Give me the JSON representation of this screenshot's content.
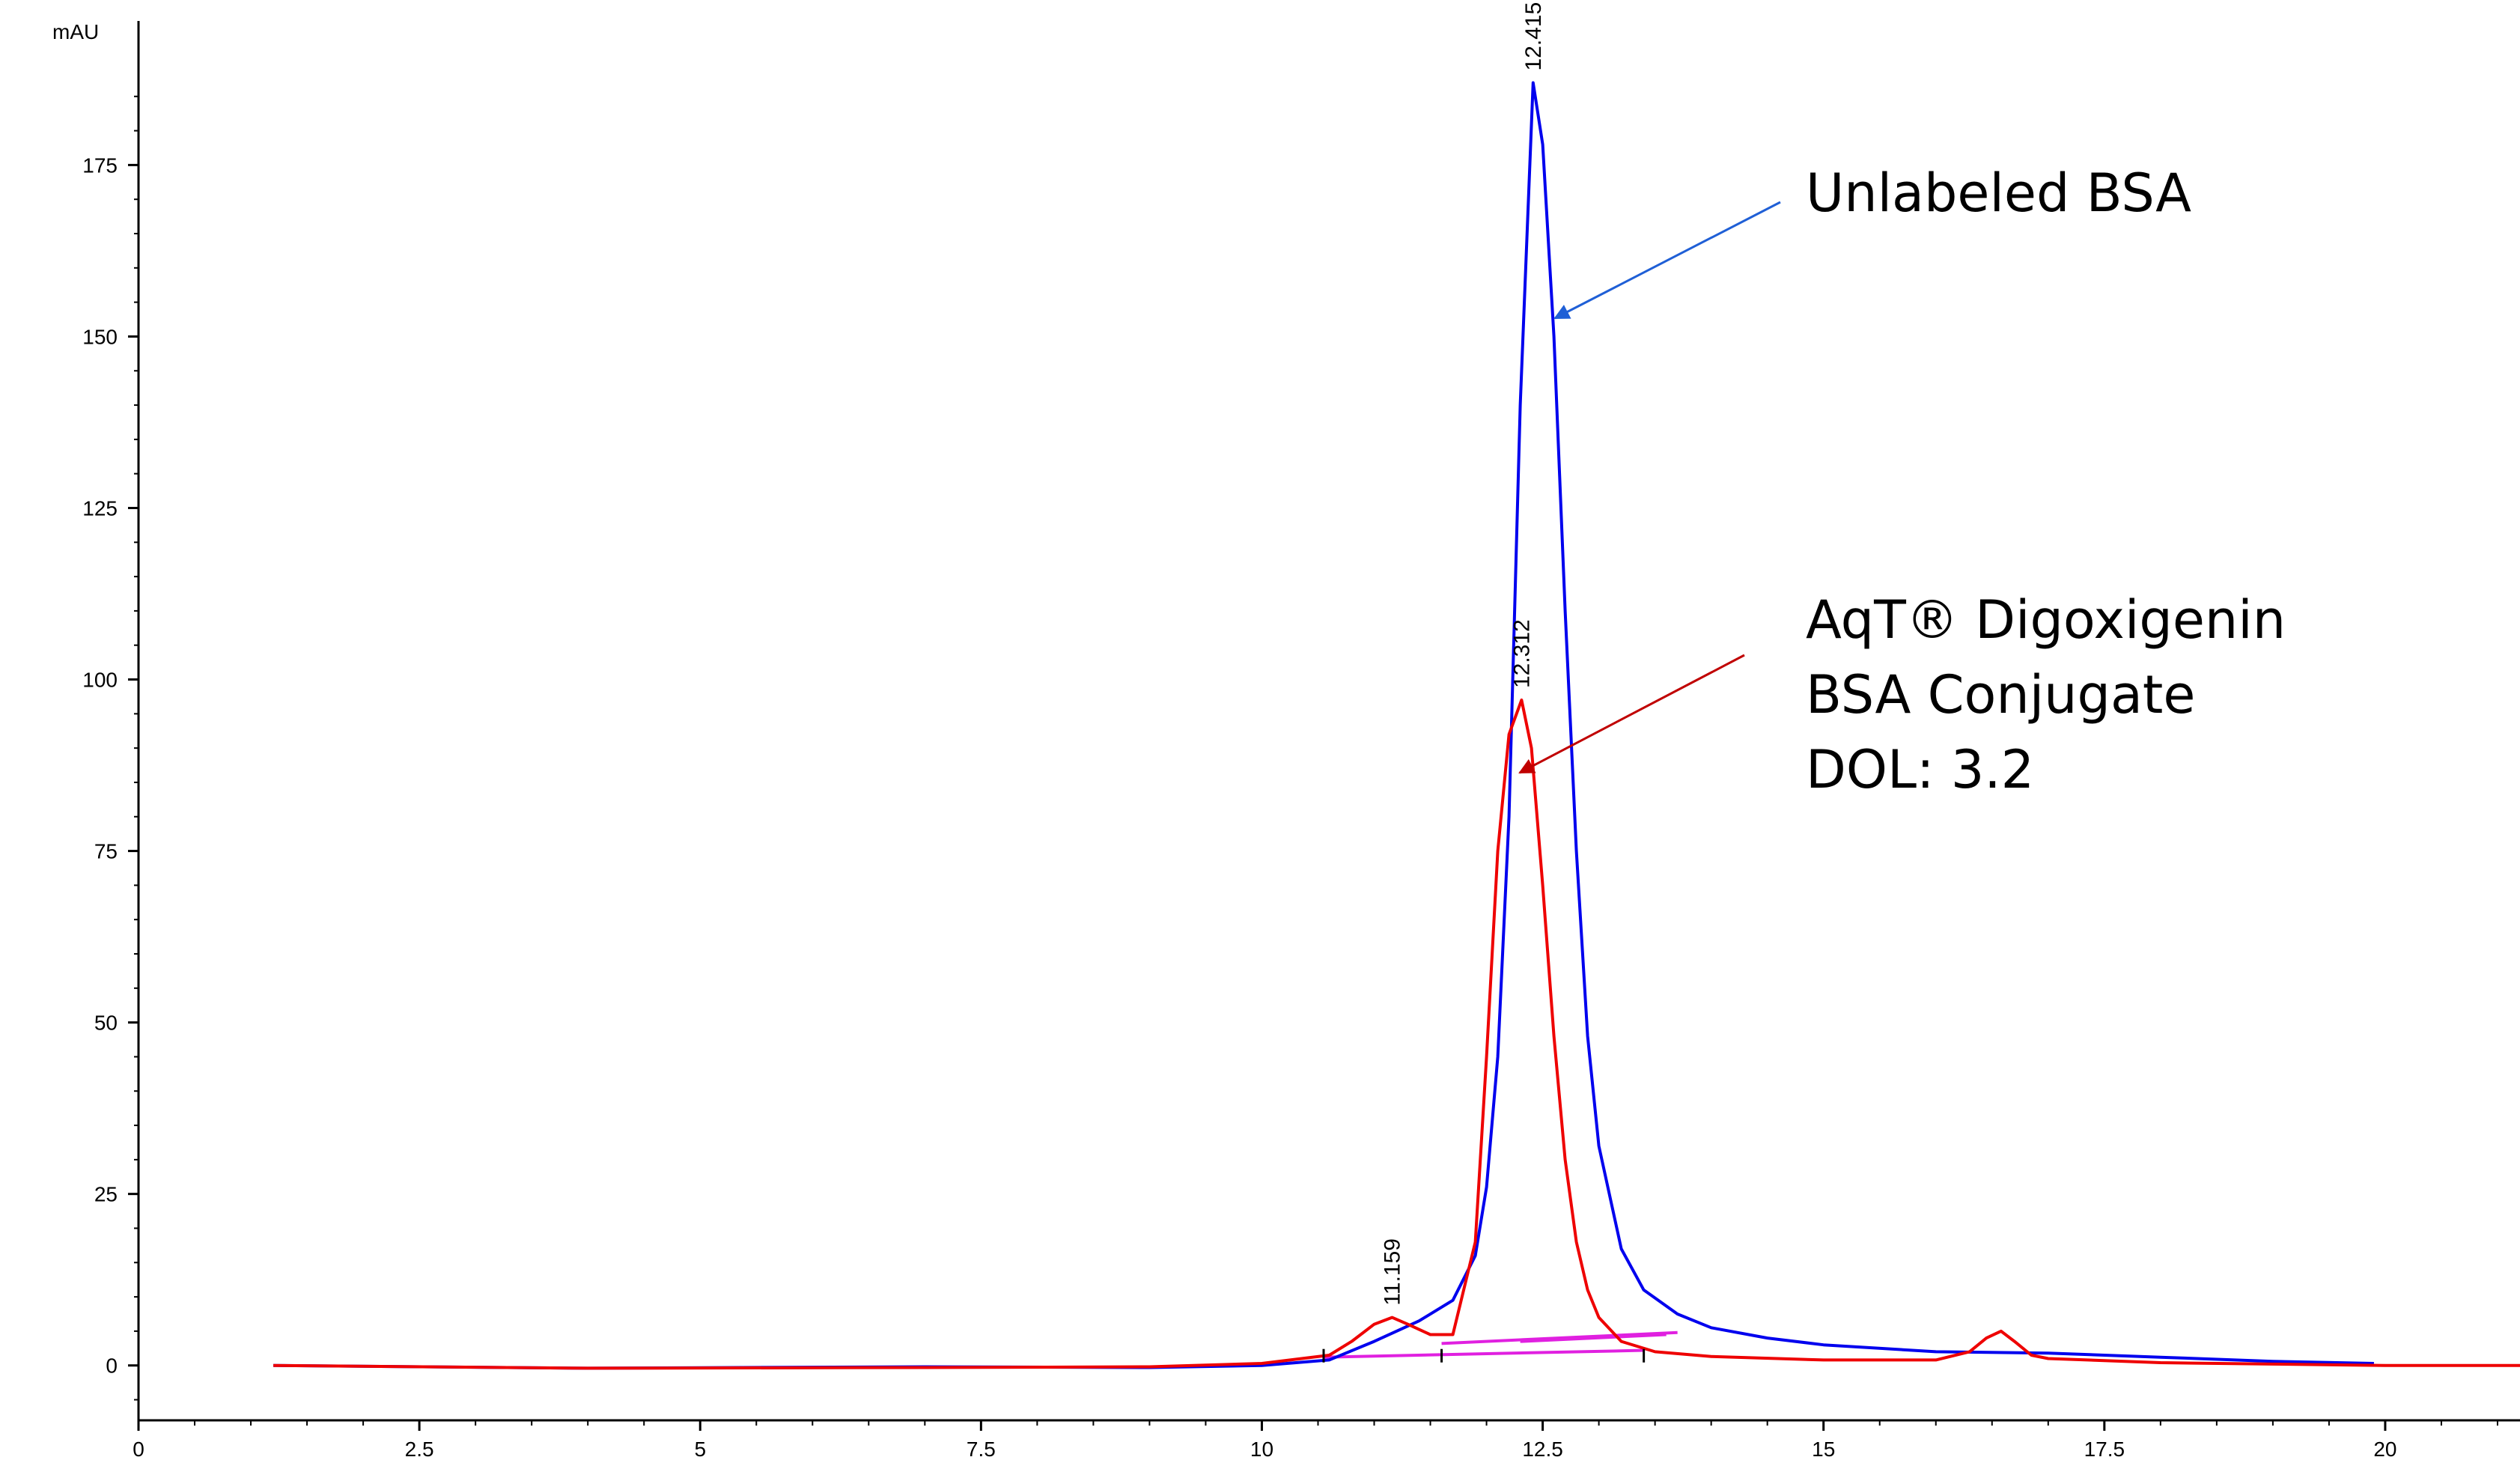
{
  "chart_data": {
    "type": "line",
    "title": "",
    "ylabel": "mAU",
    "xlabel": "",
    "xlim": [
      0,
      21.2
    ],
    "ylim": [
      -8,
      196
    ],
    "x_ticks": [
      0,
      2.5,
      5,
      7.5,
      10,
      12.5,
      15,
      17.5,
      20
    ],
    "x_tick_labels": [
      "0",
      "2.5",
      "5",
      "7.5",
      "10",
      "12.5",
      "15",
      "17.5",
      "20"
    ],
    "y_ticks": [
      0,
      25,
      50,
      75,
      100,
      125,
      150,
      175
    ],
    "y_tick_labels": [
      "0",
      "25",
      "50",
      "75",
      "100",
      "125",
      "150",
      "175"
    ],
    "grid": false,
    "legend": "none",
    "colors": {
      "unlabeled": "#0000ee",
      "conjugate": "#ee0000",
      "baseline": "#e020e0",
      "arrow_unlabeled": "#1f5fd6",
      "arrow_conjugate": "#c00000"
    },
    "series": [
      {
        "x": [
          1.2,
          4.0,
          7.0,
          9.0,
          10.0,
          10.6,
          11.0,
          11.4,
          11.7,
          11.9,
          12.0,
          12.1,
          12.2,
          12.3,
          12.415,
          12.5,
          12.6,
          12.7,
          12.8,
          12.9,
          13.0,
          13.2,
          13.4,
          13.7,
          14.0,
          14.5,
          15.0,
          16.0,
          17.0,
          18.0,
          19.0,
          19.9
        ],
        "y": [
          0,
          -0.4,
          -0.2,
          -0.3,
          0,
          0.8,
          3.5,
          6.5,
          9.5,
          16,
          26,
          45,
          80,
          140,
          187,
          178,
          150,
          110,
          75,
          48,
          32,
          17,
          11,
          7.5,
          5.5,
          4,
          3,
          2,
          1.8,
          1.2,
          0.6,
          0.3
        ]
      },
      {
        "x": [
          1.2,
          4.0,
          7.0,
          9.0,
          10.0,
          10.6,
          10.8,
          11.0,
          11.159,
          11.3,
          11.5,
          11.7,
          11.9,
          12.0,
          12.1,
          12.2,
          12.312,
          12.4,
          12.5,
          12.6,
          12.7,
          12.8,
          12.9,
          13.0,
          13.2,
          13.5,
          14.0,
          15.0,
          16.0,
          16.3,
          16.45,
          16.58,
          16.7,
          16.85,
          17.0,
          18.0,
          19.0,
          20.0,
          21.2
        ],
        "y": [
          0,
          -0.4,
          -0.3,
          -0.2,
          0.3,
          1.5,
          3.5,
          6,
          7,
          6,
          4.5,
          4.5,
          18,
          45,
          75,
          92,
          97,
          90,
          70,
          48,
          30,
          18,
          11,
          7,
          3.5,
          2,
          1.3,
          0.8,
          0.8,
          2,
          4,
          5,
          3.5,
          1.5,
          1,
          0.4,
          0.2,
          0,
          0
        ]
      }
    ],
    "baselines": [
      {
        "x": [
          10.55,
          13.4
        ],
        "y": [
          1.2,
          2.2
        ]
      },
      {
        "x": [
          11.6,
          13.7
        ],
        "y": [
          3.2,
          4.8
        ]
      },
      {
        "x": [
          12.3,
          13.6
        ],
        "y": [
          3.5,
          4.5
        ]
      }
    ],
    "peak_labels": [
      {
        "text": "12.415",
        "x": 12.415,
        "y": 187
      },
      {
        "text": "12.312",
        "x": 12.312,
        "y": 97
      },
      {
        "text": "11.159",
        "x": 11.159,
        "y": 7
      }
    ],
    "integration_marks": [
      10.55,
      11.6,
      13.4
    ],
    "annotations": [
      {
        "lines": [
          "Unlabeled BSA"
        ],
        "target": [
          12.6,
          155
        ]
      },
      {
        "lines": [
          "AqT® Digoxigenin",
          "BSA Conjugate",
          "DOL: 3.2"
        ],
        "target": [
          12.45,
          86
        ]
      }
    ]
  }
}
